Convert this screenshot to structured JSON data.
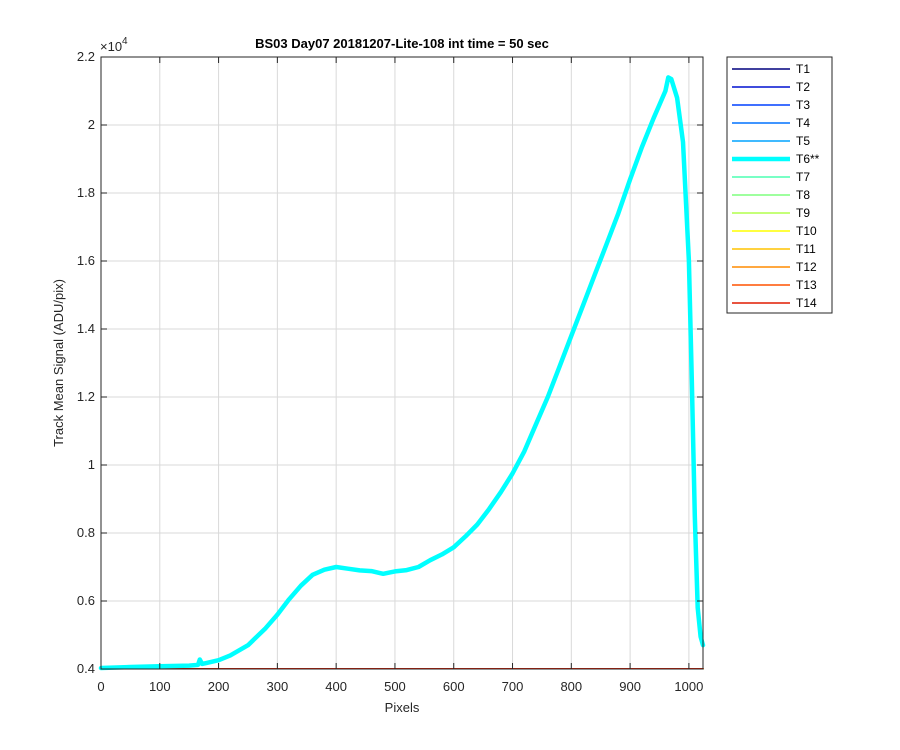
{
  "chart_data": {
    "type": "line",
    "title": "BS03 Day07 20181207-Lite-108 int time = 50 sec",
    "xlabel": "Pixels",
    "ylabel": "Track Mean Signal (ADU/pix)",
    "exponent_label": "×10",
    "exponent_power": "4",
    "xlim": [
      0,
      1024
    ],
    "ylim": [
      0.4,
      2.2
    ],
    "xticks": [
      0,
      100,
      200,
      300,
      400,
      500,
      600,
      700,
      800,
      900,
      1000
    ],
    "yticks": [
      0.4,
      0.6,
      0.8,
      1,
      1.2,
      1.4,
      1.6,
      1.8,
      2,
      2.2
    ],
    "ytick_labels": [
      "0.4",
      "0.6",
      "0.8",
      "1",
      "1.2",
      "1.4",
      "1.6",
      "1.8",
      "2",
      "2.2"
    ],
    "grid": true,
    "legend_position": "outside-right",
    "series": [
      {
        "name": "T1",
        "color": "#00007f",
        "width": 1.5,
        "flat": 0.4005
      },
      {
        "name": "T2",
        "color": "#0011d1",
        "width": 1.5,
        "flat": 0.4005
      },
      {
        "name": "T3",
        "color": "#0040ff",
        "width": 1.5,
        "flat": 0.4005
      },
      {
        "name": "T4",
        "color": "#0072ff",
        "width": 1.5,
        "flat": 0.4005
      },
      {
        "name": "T5",
        "color": "#00a4ff",
        "width": 1.5,
        "flat": 0.4005
      },
      {
        "name": "T6**",
        "color": "#00ffff",
        "width": 4.5,
        "x": [
          0,
          50,
          100,
          150,
          165,
          168,
          172,
          180,
          200,
          220,
          250,
          280,
          300,
          320,
          340,
          360,
          380,
          400,
          420,
          440,
          460,
          480,
          500,
          520,
          540,
          560,
          580,
          600,
          620,
          640,
          660,
          680,
          700,
          720,
          740,
          760,
          780,
          800,
          820,
          840,
          860,
          880,
          900,
          920,
          940,
          950,
          960,
          965,
          970,
          980,
          990,
          1000,
          1005,
          1010,
          1015,
          1020,
          1024
        ],
        "y": [
          0.403,
          0.406,
          0.408,
          0.41,
          0.412,
          0.428,
          0.415,
          0.418,
          0.426,
          0.44,
          0.47,
          0.52,
          0.56,
          0.605,
          0.645,
          0.677,
          0.692,
          0.7,
          0.695,
          0.69,
          0.688,
          0.68,
          0.687,
          0.691,
          0.7,
          0.72,
          0.737,
          0.758,
          0.79,
          0.825,
          0.87,
          0.92,
          0.975,
          1.04,
          1.12,
          1.2,
          1.29,
          1.38,
          1.47,
          1.56,
          1.65,
          1.74,
          1.84,
          1.935,
          2.02,
          2.06,
          2.1,
          2.14,
          2.135,
          2.08,
          1.95,
          1.6,
          1.25,
          0.85,
          0.58,
          0.495,
          0.47
        ]
      },
      {
        "name": "T7",
        "color": "#4cffb2",
        "width": 1.5,
        "flat": 0.4005
      },
      {
        "name": "T8",
        "color": "#7fff7f",
        "width": 1.5,
        "flat": 0.4005
      },
      {
        "name": "T9",
        "color": "#b2ff4c",
        "width": 1.5,
        "flat": 0.4005
      },
      {
        "name": "T10",
        "color": "#ffff00",
        "width": 1.5,
        "flat": 0.4005
      },
      {
        "name": "T11",
        "color": "#ffc400",
        "width": 1.5,
        "flat": 0.4005
      },
      {
        "name": "T12",
        "color": "#ff8c00",
        "width": 1.5,
        "flat": 0.4005
      },
      {
        "name": "T13",
        "color": "#ff5200",
        "width": 1.5,
        "flat": 0.4005
      },
      {
        "name": "T14",
        "color": "#e01c00",
        "width": 1.5,
        "flat": 0.4005
      }
    ]
  }
}
